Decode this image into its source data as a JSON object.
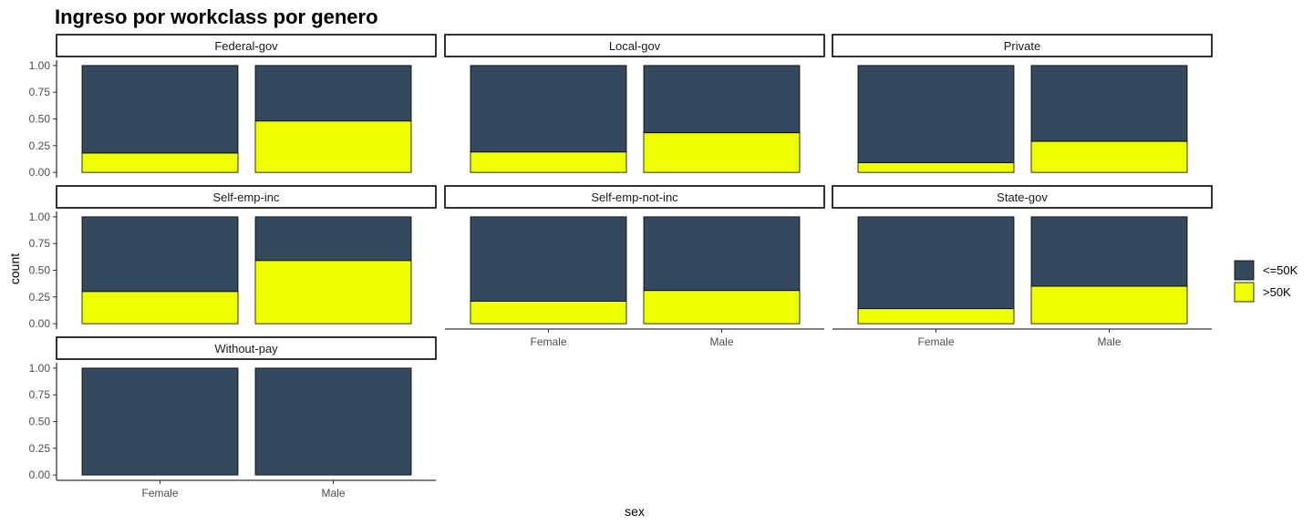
{
  "chart_data": {
    "type": "bar",
    "subtype": "stacked-fill-facet",
    "title": "Ingreso por workclass por genero",
    "xlabel": "sex",
    "ylabel": "count",
    "categories": [
      "Female",
      "Male"
    ],
    "ylim": [
      0,
      1
    ],
    "yticks": [
      "0.00",
      "0.25",
      "0.50",
      "0.75",
      "1.00"
    ],
    "grid": false,
    "legend_position": "right",
    "series": [
      {
        "name": "<=50K",
        "color": "#34495e"
      },
      {
        "name": ">50K",
        "color": "#eeff00"
      }
    ],
    "facets": [
      {
        "label": "Federal-gov",
        "high_income_share": [
          0.18,
          0.48
        ]
      },
      {
        "label": "Local-gov",
        "high_income_share": [
          0.19,
          0.37
        ]
      },
      {
        "label": "Private",
        "high_income_share": [
          0.09,
          0.29
        ]
      },
      {
        "label": "Self-emp-inc",
        "high_income_share": [
          0.3,
          0.59
        ]
      },
      {
        "label": "Self-emp-not-inc",
        "high_income_share": [
          0.21,
          0.31
        ]
      },
      {
        "label": "State-gov",
        "high_income_share": [
          0.14,
          0.35
        ]
      },
      {
        "label": "Without-pay",
        "high_income_share": [
          0.0,
          0.0
        ]
      }
    ]
  }
}
